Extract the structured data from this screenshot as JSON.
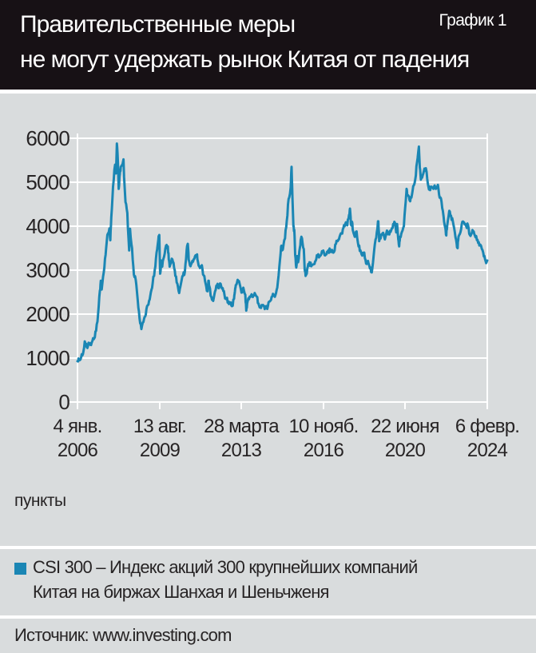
{
  "header": {
    "title_line1": "Правительственные меры",
    "title_line2": "не могут удержать рынок Китая от падения",
    "corner_label": "График 1"
  },
  "axis": {
    "unit_label": "пункты",
    "y_ticks": [
      "6000",
      "5000",
      "4000",
      "3000",
      "2000",
      "1000",
      "0"
    ],
    "x_ticks": [
      {
        "date": "4 янв.",
        "year": "2006"
      },
      {
        "date": "13 авг.",
        "year": "2009"
      },
      {
        "date": "28 марта",
        "year": "2013"
      },
      {
        "date": "10 нояб.",
        "year": "2016"
      },
      {
        "date": "22 июня",
        "year": "2020"
      },
      {
        "date": "6 февр.",
        "year": "2024"
      }
    ]
  },
  "legend": {
    "line1": "CSI 300 – Индекс акций 300 крупнейших компаний",
    "line2": "Китая на биржах Шанхая и Шеньчженя"
  },
  "source": {
    "text": "Источник: www.investing.com"
  },
  "colors": {
    "line": "#1a86b4",
    "panel_bg": "#d9dcdd",
    "header_bg": "#171115",
    "grid": "#ffffff",
    "text": "#272425"
  },
  "chart_data": {
    "type": "line",
    "title": "Правительственные меры не могут удержать рынок Китая от падения",
    "series_name": "CSI 300 – Индекс акций 300 крупнейших компаний Китая на биржах Шанхая и Шеньчженя",
    "ylabel": "пункты",
    "ylim": [
      0,
      6000
    ],
    "yticks": [
      0,
      1000,
      2000,
      3000,
      4000,
      5000,
      6000
    ],
    "x_unit": "decimal_year",
    "x_range": [
      2006.01,
      2024.1
    ],
    "xtick_positions": [
      2006.01,
      2009.62,
      2013.24,
      2016.86,
      2020.47,
      2024.1
    ],
    "xtick_labels": [
      "4 янв. 2006",
      "13 авг. 2009",
      "28 марта 2013",
      "10 нояб. 2016",
      "22 июня 2020",
      "6 февр. 2024"
    ],
    "grid": true,
    "legend_position": "bottom",
    "points": [
      [
        2006.01,
        930
      ],
      [
        2006.08,
        970
      ],
      [
        2006.17,
        1010
      ],
      [
        2006.25,
        1090
      ],
      [
        2006.33,
        1380
      ],
      [
        2006.42,
        1250
      ],
      [
        2006.5,
        1350
      ],
      [
        2006.58,
        1300
      ],
      [
        2006.67,
        1390
      ],
      [
        2006.75,
        1450
      ],
      [
        2006.83,
        1620
      ],
      [
        2006.92,
        2000
      ],
      [
        2007.0,
        2540
      ],
      [
        2007.04,
        2760
      ],
      [
        2007.08,
        2560
      ],
      [
        2007.17,
        2950
      ],
      [
        2007.25,
        3350
      ],
      [
        2007.33,
        3800
      ],
      [
        2007.42,
        3950
      ],
      [
        2007.46,
        3680
      ],
      [
        2007.5,
        4200
      ],
      [
        2007.58,
        4900
      ],
      [
        2007.67,
        5400
      ],
      [
        2007.71,
        5200
      ],
      [
        2007.75,
        5880
      ],
      [
        2007.79,
        5500
      ],
      [
        2007.83,
        4850
      ],
      [
        2007.88,
        5180
      ],
      [
        2007.92,
        5350
      ],
      [
        2008.04,
        5520
      ],
      [
        2008.08,
        5000
      ],
      [
        2008.13,
        4550
      ],
      [
        2008.21,
        4300
      ],
      [
        2008.29,
        3450
      ],
      [
        2008.33,
        3940
      ],
      [
        2008.42,
        3500
      ],
      [
        2008.5,
        2900
      ],
      [
        2008.58,
        2780
      ],
      [
        2008.67,
        2320
      ],
      [
        2008.75,
        1900
      ],
      [
        2008.83,
        1660
      ],
      [
        2008.92,
        1820
      ],
      [
        2009.0,
        1950
      ],
      [
        2009.08,
        2180
      ],
      [
        2009.17,
        2300
      ],
      [
        2009.25,
        2500
      ],
      [
        2009.33,
        2700
      ],
      [
        2009.42,
        3000
      ],
      [
        2009.5,
        3400
      ],
      [
        2009.58,
        3690
      ],
      [
        2009.62,
        3800
      ],
      [
        2009.66,
        2920
      ],
      [
        2009.71,
        3220
      ],
      [
        2009.75,
        3080
      ],
      [
        2009.83,
        3300
      ],
      [
        2009.92,
        3560
      ],
      [
        2010.0,
        3540
      ],
      [
        2010.04,
        3240
      ],
      [
        2010.08,
        3080
      ],
      [
        2010.17,
        3260
      ],
      [
        2010.25,
        3170
      ],
      [
        2010.33,
        2870
      ],
      [
        2010.42,
        2690
      ],
      [
        2010.5,
        2480
      ],
      [
        2010.58,
        2700
      ],
      [
        2010.67,
        2870
      ],
      [
        2010.75,
        2960
      ],
      [
        2010.83,
        3460
      ],
      [
        2010.88,
        3600
      ],
      [
        2010.92,
        3240
      ],
      [
        2011.0,
        3090
      ],
      [
        2011.08,
        3210
      ],
      [
        2011.17,
        3260
      ],
      [
        2011.25,
        3310
      ],
      [
        2011.29,
        3360
      ],
      [
        2011.33,
        3180
      ],
      [
        2011.42,
        3050
      ],
      [
        2011.5,
        3110
      ],
      [
        2011.58,
        2880
      ],
      [
        2011.67,
        2690
      ],
      [
        2011.75,
        2520
      ],
      [
        2011.79,
        2760
      ],
      [
        2011.83,
        2640
      ],
      [
        2011.92,
        2390
      ],
      [
        2012.0,
        2300
      ],
      [
        2012.08,
        2510
      ],
      [
        2012.17,
        2660
      ],
      [
        2012.25,
        2590
      ],
      [
        2012.33,
        2690
      ],
      [
        2012.42,
        2590
      ],
      [
        2012.5,
        2440
      ],
      [
        2012.58,
        2340
      ],
      [
        2012.67,
        2290
      ],
      [
        2012.75,
        2240
      ],
      [
        2012.83,
        2180
      ],
      [
        2012.92,
        2350
      ],
      [
        2012.96,
        2520
      ],
      [
        2013.0,
        2660
      ],
      [
        2013.08,
        2780
      ],
      [
        2013.17,
        2690
      ],
      [
        2013.25,
        2490
      ],
      [
        2013.33,
        2600
      ],
      [
        2013.42,
        2440
      ],
      [
        2013.46,
        2080
      ],
      [
        2013.5,
        2240
      ],
      [
        2013.58,
        2340
      ],
      [
        2013.67,
        2420
      ],
      [
        2013.75,
        2390
      ],
      [
        2013.83,
        2480
      ],
      [
        2013.92,
        2400
      ],
      [
        2014.0,
        2240
      ],
      [
        2014.08,
        2160
      ],
      [
        2014.17,
        2200
      ],
      [
        2014.25,
        2170
      ],
      [
        2014.33,
        2140
      ],
      [
        2014.42,
        2190
      ],
      [
        2014.5,
        2290
      ],
      [
        2014.58,
        2390
      ],
      [
        2014.67,
        2440
      ],
      [
        2014.75,
        2440
      ],
      [
        2014.83,
        2600
      ],
      [
        2014.92,
        3080
      ],
      [
        2015.0,
        3540
      ],
      [
        2015.04,
        3450
      ],
      [
        2015.08,
        3480
      ],
      [
        2015.17,
        3720
      ],
      [
        2015.25,
        4120
      ],
      [
        2015.33,
        4620
      ],
      [
        2015.42,
        4880
      ],
      [
        2015.46,
        5350
      ],
      [
        2015.5,
        4650
      ],
      [
        2015.54,
        4000
      ],
      [
        2015.58,
        3920
      ],
      [
        2015.62,
        3350
      ],
      [
        2015.67,
        3060
      ],
      [
        2015.71,
        3320
      ],
      [
        2015.75,
        3180
      ],
      [
        2015.83,
        3520
      ],
      [
        2015.88,
        3720
      ],
      [
        2015.92,
        3730
      ],
      [
        2016.0,
        3480
      ],
      [
        2016.04,
        3020
      ],
      [
        2016.08,
        2870
      ],
      [
        2016.13,
        2920
      ],
      [
        2016.17,
        3060
      ],
      [
        2016.25,
        3180
      ],
      [
        2016.33,
        3090
      ],
      [
        2016.42,
        3130
      ],
      [
        2016.5,
        3200
      ],
      [
        2016.58,
        3340
      ],
      [
        2016.67,
        3290
      ],
      [
        2016.75,
        3340
      ],
      [
        2016.83,
        3430
      ],
      [
        2016.92,
        3340
      ],
      [
        2017.0,
        3360
      ],
      [
        2017.08,
        3450
      ],
      [
        2017.17,
        3440
      ],
      [
        2017.25,
        3460
      ],
      [
        2017.33,
        3410
      ],
      [
        2017.42,
        3600
      ],
      [
        2017.5,
        3660
      ],
      [
        2017.58,
        3760
      ],
      [
        2017.67,
        3830
      ],
      [
        2017.75,
        3960
      ],
      [
        2017.83,
        4050
      ],
      [
        2017.92,
        4020
      ],
      [
        2018.0,
        4260
      ],
      [
        2018.04,
        4400
      ],
      [
        2018.08,
        4050
      ],
      [
        2018.13,
        4100
      ],
      [
        2018.17,
        3900
      ],
      [
        2018.25,
        3760
      ],
      [
        2018.33,
        3880
      ],
      [
        2018.42,
        3540
      ],
      [
        2018.5,
        3450
      ],
      [
        2018.58,
        3330
      ],
      [
        2018.67,
        3400
      ],
      [
        2018.75,
        3150
      ],
      [
        2018.83,
        3210
      ],
      [
        2018.92,
        3040
      ],
      [
        2019.0,
        2950
      ],
      [
        2019.08,
        3300
      ],
      [
        2019.17,
        3700
      ],
      [
        2019.25,
        3950
      ],
      [
        2019.29,
        4110
      ],
      [
        2019.33,
        3660
      ],
      [
        2019.42,
        3810
      ],
      [
        2019.5,
        3850
      ],
      [
        2019.58,
        3700
      ],
      [
        2019.67,
        3900
      ],
      [
        2019.75,
        3840
      ],
      [
        2019.83,
        3870
      ],
      [
        2019.92,
        3960
      ],
      [
        2020.0,
        4100
      ],
      [
        2020.08,
        3860
      ],
      [
        2020.12,
        4050
      ],
      [
        2020.17,
        3700
      ],
      [
        2020.21,
        3540
      ],
      [
        2020.25,
        3760
      ],
      [
        2020.33,
        3870
      ],
      [
        2020.42,
        4000
      ],
      [
        2020.5,
        4560
      ],
      [
        2020.54,
        4850
      ],
      [
        2020.58,
        4700
      ],
      [
        2020.67,
        4590
      ],
      [
        2020.75,
        4650
      ],
      [
        2020.83,
        4910
      ],
      [
        2020.92,
        5060
      ],
      [
        2021.0,
        5460
      ],
      [
        2021.08,
        5810
      ],
      [
        2021.12,
        5340
      ],
      [
        2021.17,
        5060
      ],
      [
        2021.25,
        5160
      ],
      [
        2021.33,
        5310
      ],
      [
        2021.42,
        5240
      ],
      [
        2021.5,
        4900
      ],
      [
        2021.58,
        4820
      ],
      [
        2021.67,
        4880
      ],
      [
        2021.75,
        4900
      ],
      [
        2021.83,
        4850
      ],
      [
        2021.92,
        4940
      ],
      [
        2022.0,
        4650
      ],
      [
        2022.08,
        4560
      ],
      [
        2022.17,
        4220
      ],
      [
        2022.25,
        3960
      ],
      [
        2022.29,
        3790
      ],
      [
        2022.33,
        4010
      ],
      [
        2022.42,
        4350
      ],
      [
        2022.5,
        4240
      ],
      [
        2022.58,
        4110
      ],
      [
        2022.67,
        3860
      ],
      [
        2022.75,
        3600
      ],
      [
        2022.79,
        3500
      ],
      [
        2022.83,
        3760
      ],
      [
        2022.92,
        3870
      ],
      [
        2023.0,
        4100
      ],
      [
        2023.08,
        4080
      ],
      [
        2023.17,
        4000
      ],
      [
        2023.25,
        4020
      ],
      [
        2023.33,
        3800
      ],
      [
        2023.42,
        3850
      ],
      [
        2023.5,
        3880
      ],
      [
        2023.58,
        3750
      ],
      [
        2023.67,
        3690
      ],
      [
        2023.75,
        3560
      ],
      [
        2023.83,
        3550
      ],
      [
        2023.92,
        3400
      ],
      [
        2024.0,
        3250
      ],
      [
        2024.05,
        3160
      ],
      [
        2024.1,
        3220
      ]
    ]
  }
}
